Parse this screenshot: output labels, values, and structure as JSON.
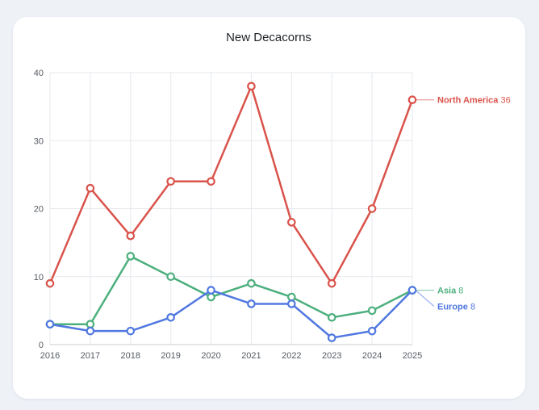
{
  "chart_data": {
    "type": "line",
    "title": "New Decacorns",
    "xlabel": "",
    "ylabel": "",
    "categories": [
      "2016",
      "2017",
      "2018",
      "2019",
      "2020",
      "2021",
      "2022",
      "2023",
      "2024",
      "2025"
    ],
    "ylim": [
      0,
      40
    ],
    "yticks": [
      0,
      10,
      20,
      30,
      40
    ],
    "grid": true,
    "series": [
      {
        "name": "North America",
        "color": "#d9534b",
        "values": [
          9,
          23,
          16,
          24,
          24,
          38,
          18,
          9,
          20,
          36
        ],
        "end_label": "North America",
        "end_value": "36"
      },
      {
        "name": "Asia",
        "color": "#4caf7d",
        "values": [
          3,
          3,
          13,
          10,
          7,
          9,
          7,
          4,
          5,
          8
        ],
        "end_label": "Asia",
        "end_value": "8"
      },
      {
        "name": "Europe",
        "color": "#5078e0",
        "values": [
          3,
          2,
          2,
          4,
          8,
          6,
          6,
          1,
          2,
          8
        ],
        "end_label": "Europe",
        "end_value": "8"
      }
    ]
  }
}
